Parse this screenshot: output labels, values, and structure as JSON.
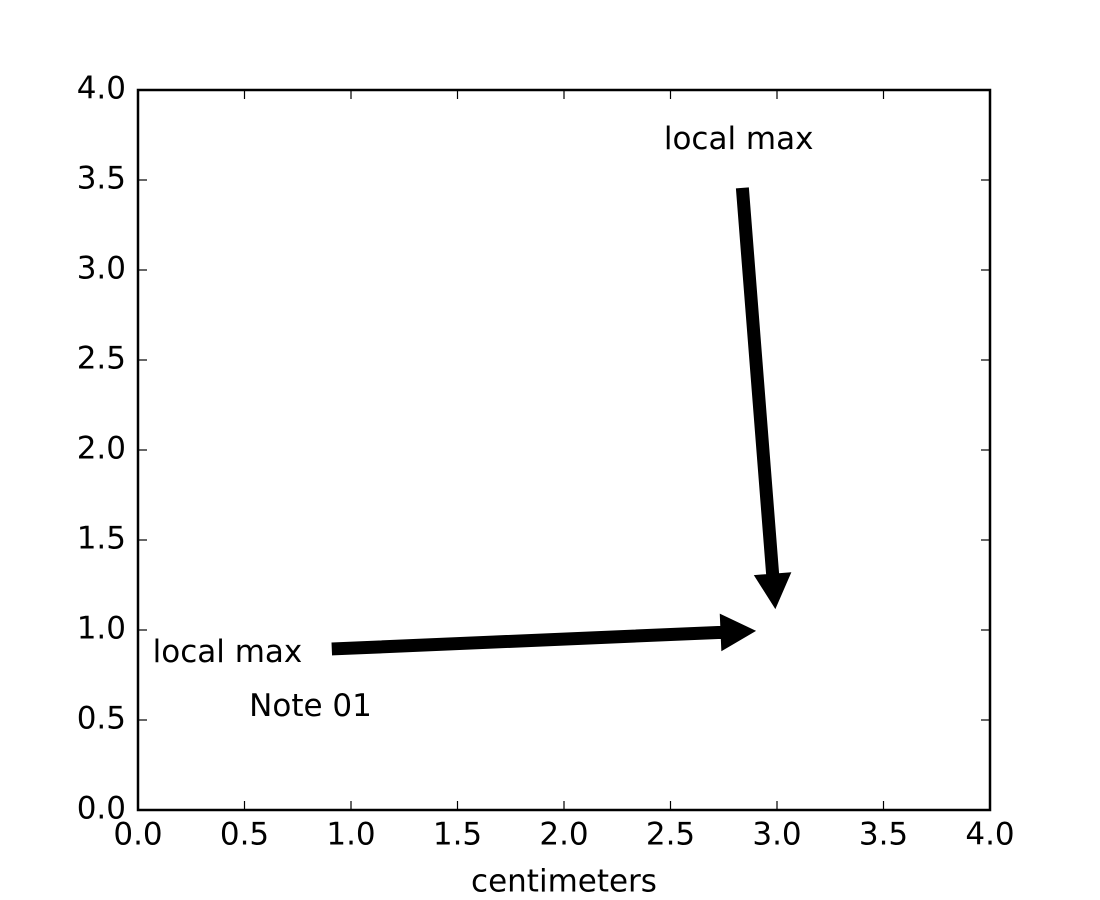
{
  "chart_data": {
    "type": "annotation",
    "xlabel": "centimeters",
    "xlim": [
      0,
      4
    ],
    "ylim": [
      0,
      4
    ],
    "xticks": [
      {
        "value": 0,
        "label": "0.0"
      },
      {
        "value": 0.5,
        "label": "0.5"
      },
      {
        "value": 1,
        "label": "1.0"
      },
      {
        "value": 1.5,
        "label": "1.5"
      },
      {
        "value": 2,
        "label": "2.0"
      },
      {
        "value": 2.5,
        "label": "2.5"
      },
      {
        "value": 3,
        "label": "3.0"
      },
      {
        "value": 3.5,
        "label": "3.5"
      },
      {
        "value": 4,
        "label": "4.0"
      }
    ],
    "yticks": [
      {
        "value": 0,
        "label": "0.0"
      },
      {
        "value": 0.5,
        "label": "0.5"
      },
      {
        "value": 1,
        "label": "1.0"
      },
      {
        "value": 1.5,
        "label": "1.5"
      },
      {
        "value": 2,
        "label": "2.0"
      },
      {
        "value": 2.5,
        "label": "2.5"
      },
      {
        "value": 3,
        "label": "3.0"
      },
      {
        "value": 3.5,
        "label": "3.5"
      },
      {
        "value": 4,
        "label": "4.0"
      }
    ],
    "annotations": [
      {
        "text": "local max",
        "xy": [
          3,
          1
        ],
        "xytext": [
          2.82,
          3.72
        ],
        "arrow": true
      },
      {
        "text": "local max",
        "xy": [
          3,
          1
        ],
        "xytext": [
          0.42,
          0.87
        ],
        "arrow": true
      },
      {
        "text": "Note 01",
        "xytext": [
          0.81,
          0.57
        ],
        "arrow": false
      }
    ],
    "color": "#000000"
  }
}
